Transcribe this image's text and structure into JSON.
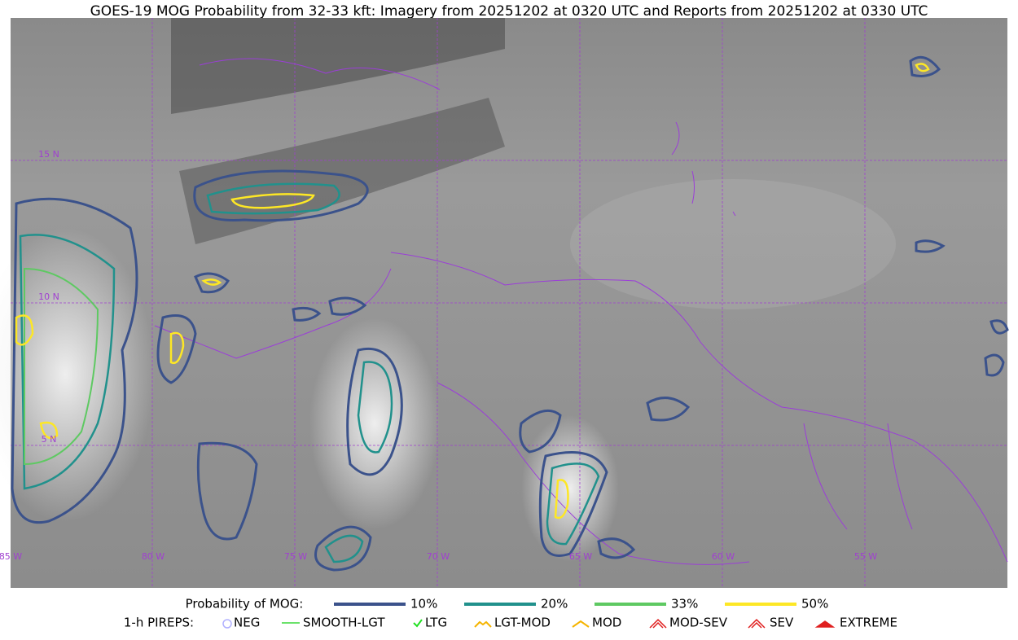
{
  "header": {
    "title": "GOES-19 MOG Probability from 32-33 kft: Imagery from 20251202 at 0320 UTC and Reports from 20251202 at 0330 UTC"
  },
  "map": {
    "lat_labels": [
      "15 N",
      "10 N",
      "5 N"
    ],
    "lon_labels": [
      "85 W",
      "80 W",
      "75 W",
      "70 W",
      "65 W",
      "60 W",
      "55 W"
    ]
  },
  "legend": {
    "probability": {
      "title": "Probability of MOG:",
      "items": [
        "10%",
        "20%",
        "33%",
        "50%"
      ]
    },
    "pireps": {
      "title": "1-h PIREPS:",
      "items": [
        "NEG",
        "SMOOTH-LGT",
        "LTG",
        "LGT-MOD",
        "MOD",
        "MOD-SEV",
        "SEV",
        "EXTREME"
      ]
    }
  }
}
